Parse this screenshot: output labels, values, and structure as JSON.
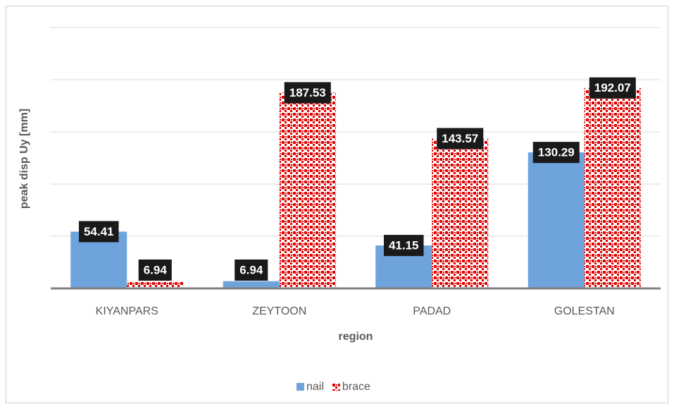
{
  "chart_data": {
    "type": "bar",
    "x_label": "region",
    "y_label": "peak disp Uy [mm]",
    "categories": [
      "KIYANPARS",
      "ZEYTOON",
      "PADAD",
      "GOLESTAN"
    ],
    "series": [
      {
        "name": "nail",
        "color": "#6fa3dc",
        "values": [
          54.41,
          6.94,
          41.15,
          130.29
        ]
      },
      {
        "name": "brace",
        "color": "#e00000",
        "values": [
          6.94,
          187.53,
          143.57,
          192.07
        ]
      }
    ],
    "ylim": [
      0,
      250
    ],
    "yticks": [
      0,
      50,
      100,
      150,
      200,
      250
    ],
    "grid": true,
    "legend": "bottom"
  }
}
